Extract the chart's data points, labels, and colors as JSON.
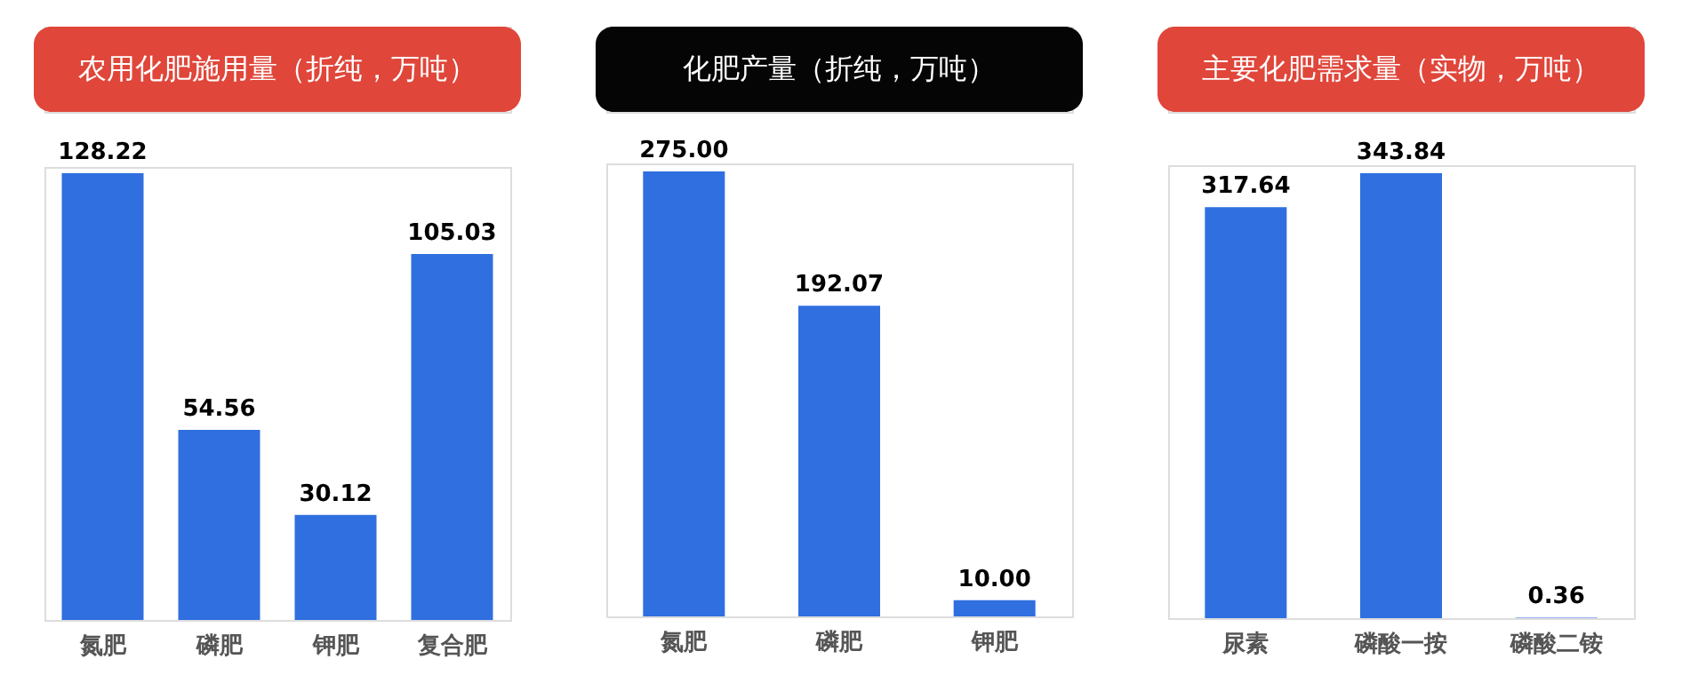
{
  "chart_data": [
    {
      "type": "bar",
      "title": "农用化肥施用量（折纯，万吨）",
      "categories": [
        "氮肥",
        "磷肥",
        "钾肥",
        "复合肥"
      ],
      "values": [
        128.22,
        54.56,
        30.12,
        105.03
      ],
      "color": "#2f6fe0",
      "value_labels": [
        "128.22",
        "54.56",
        "30.12",
        "105.03"
      ]
    },
    {
      "type": "bar",
      "title": "化肥产量（折纯，万吨）",
      "categories": [
        "氮肥",
        "磷肥",
        "钾肥"
      ],
      "values": [
        275.0,
        192.07,
        10.0
      ],
      "color": "#2f6fe0",
      "value_labels": [
        "275.00",
        "192.07",
        "10.00"
      ]
    },
    {
      "type": "bar",
      "title": "主要化肥需求量（实物，万吨）",
      "categories": [
        "尿素",
        "磷酸一按",
        "磷酸二铵"
      ],
      "values": [
        317.64,
        343.84,
        0.36
      ],
      "color": "#2f6fe0",
      "value_labels": [
        "317.64",
        "343.84",
        "0.36"
      ]
    }
  ]
}
